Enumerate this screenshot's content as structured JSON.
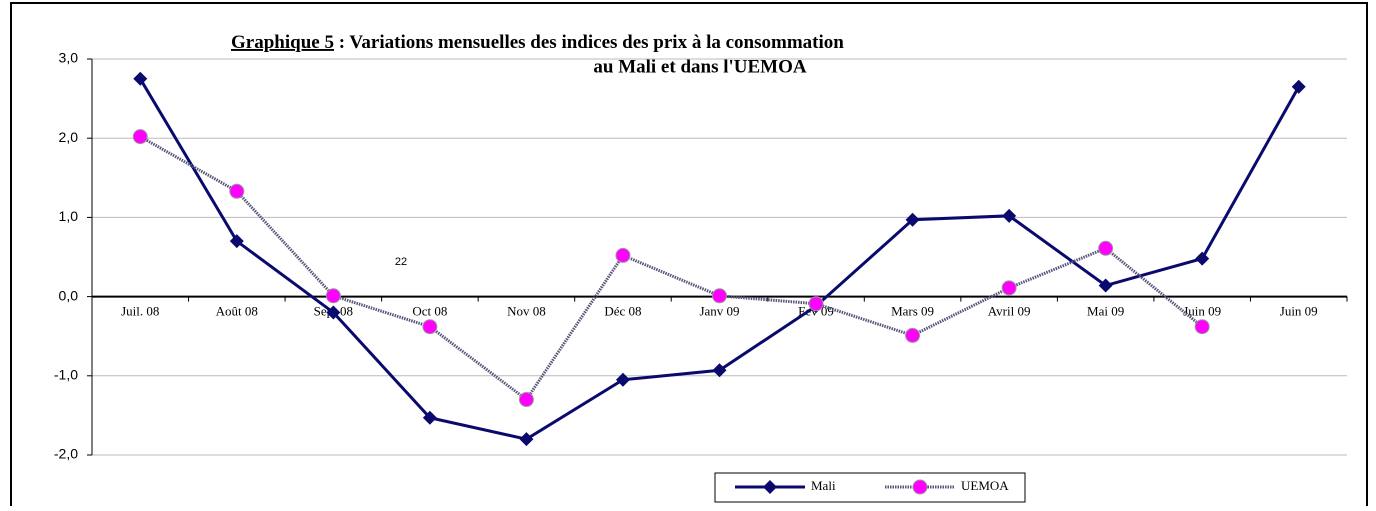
{
  "chart_data": {
    "type": "line",
    "title_label": "Graphique 5",
    "title_lines": [
      " : Variations mensuelles des indices des prix à la consommation",
      "au Mali et dans l'UEMOA"
    ],
    "annotation": "22",
    "categories": [
      "Juil. 08",
      "Août 08",
      "Sept 08",
      "Oct 08",
      "Nov 08",
      "Déc 08",
      "Janv 09",
      "Fev 09",
      "Mars 09",
      "Avril 09",
      "Mai 09",
      "Juin 09",
      "Juin 09"
    ],
    "series": [
      {
        "name": "Mali",
        "color": "#0a0a6e",
        "values": [
          2.75,
          0.7,
          -0.2,
          -1.53,
          -1.8,
          -1.05,
          -0.93,
          -0.12,
          0.97,
          1.02,
          0.14,
          0.48,
          2.65
        ]
      },
      {
        "name": "UEMOA",
        "color": "#ff00ff",
        "values": [
          2.02,
          1.33,
          0.01,
          -0.38,
          -1.3,
          0.52,
          0.01,
          -0.09,
          -0.49,
          0.11,
          0.61,
          -0.38,
          null
        ]
      }
    ],
    "ylim": [
      -2,
      3
    ],
    "yticks": [
      {
        "value": -2,
        "label": "-2,0"
      },
      {
        "value": -1,
        "label": "-1,0"
      },
      {
        "value": 0,
        "label": "0,0"
      },
      {
        "value": 1,
        "label": "1,0"
      },
      {
        "value": 2,
        "label": "2,0"
      },
      {
        "value": 3,
        "label": "3,0"
      }
    ],
    "grid": true
  }
}
